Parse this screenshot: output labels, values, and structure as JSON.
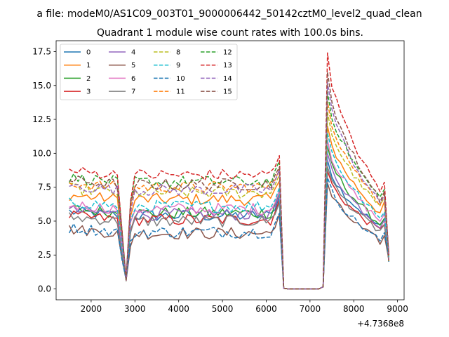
{
  "figure": {
    "suptitle": "a file: modeM0/AS1C09_003T01_9000006442_50142cztM0_level2_quad_clean",
    "title": "Quadrant 1 module wise count rates with 100.0s bins.",
    "x_offset_label": "+4.7368e8"
  },
  "chart_data": {
    "type": "line",
    "title": "Quadrant 1 module wise count rates with 100.0s bins.",
    "xlabel": "",
    "ylabel": "",
    "x_offset": 473680000,
    "xlim": [
      1200,
      9150
    ],
    "ylim": [
      -0.8,
      18.3
    ],
    "x_ticks": [
      2000,
      3000,
      4000,
      5000,
      6000,
      7000,
      8000,
      9000
    ],
    "y_ticks": [
      0.0,
      2.5,
      5.0,
      7.5,
      10.0,
      12.5,
      15.0,
      17.5
    ],
    "x_tick_labels": [
      "2000",
      "3000",
      "4000",
      "5000",
      "6000",
      "7000",
      "8000",
      "9000"
    ],
    "y_tick_labels": [
      "0.0",
      "2.5",
      "5.0",
      "7.5",
      "10.0",
      "12.5",
      "15.0",
      "17.5"
    ],
    "grid": false,
    "legend": {
      "placement": "top-left",
      "columns": 4
    },
    "x_start": 1500,
    "x_step": 100,
    "series": [
      {
        "name": "0",
        "color": "#1f77b4",
        "dash": "solid",
        "base": 5.4,
        "post": 9.5
      },
      {
        "name": "1",
        "color": "#ff7f0e",
        "dash": "solid",
        "base": 6.6,
        "post": 12.0
      },
      {
        "name": "2",
        "color": "#2ca02c",
        "dash": "solid",
        "base": 5.6,
        "post": 10.5
      },
      {
        "name": "3",
        "color": "#d62728",
        "dash": "solid",
        "base": 5.1,
        "post": 8.7
      },
      {
        "name": "4",
        "color": "#9467bd",
        "dash": "solid",
        "base": 5.5,
        "post": 10.0
      },
      {
        "name": "5",
        "color": "#8c564b",
        "dash": "solid",
        "base": 4.1,
        "post": 7.8
      },
      {
        "name": "6",
        "color": "#e377c2",
        "dash": "solid",
        "base": 5.9,
        "post": 11.0
      },
      {
        "name": "7",
        "color": "#7f7f7f",
        "dash": "solid",
        "base": 5.0,
        "post": 9.0
      },
      {
        "name": "8",
        "color": "#bcbd22",
        "dash": "dashed",
        "base": 7.1,
        "post": 13.0
      },
      {
        "name": "9",
        "color": "#17becf",
        "dash": "dashed",
        "base": 6.1,
        "post": 11.5
      },
      {
        "name": "10",
        "color": "#1f77b4",
        "dash": "dashed",
        "base": 4.2,
        "post": 8.2
      },
      {
        "name": "11",
        "color": "#ff7f0e",
        "dash": "dashed",
        "base": 7.5,
        "post": 13.8
      },
      {
        "name": "12",
        "color": "#2ca02c",
        "dash": "dashed",
        "base": 7.9,
        "post": 14.5
      },
      {
        "name": "13",
        "color": "#d62728",
        "dash": "dashed",
        "base": 8.4,
        "post": 17.4
      },
      {
        "name": "14",
        "color": "#9467bd",
        "dash": "dashed",
        "base": 7.3,
        "post": 15.2
      },
      {
        "name": "15",
        "color": "#8c564b",
        "dash": "dashed",
        "base": 7.7,
        "post": 16.0
      }
    ]
  }
}
